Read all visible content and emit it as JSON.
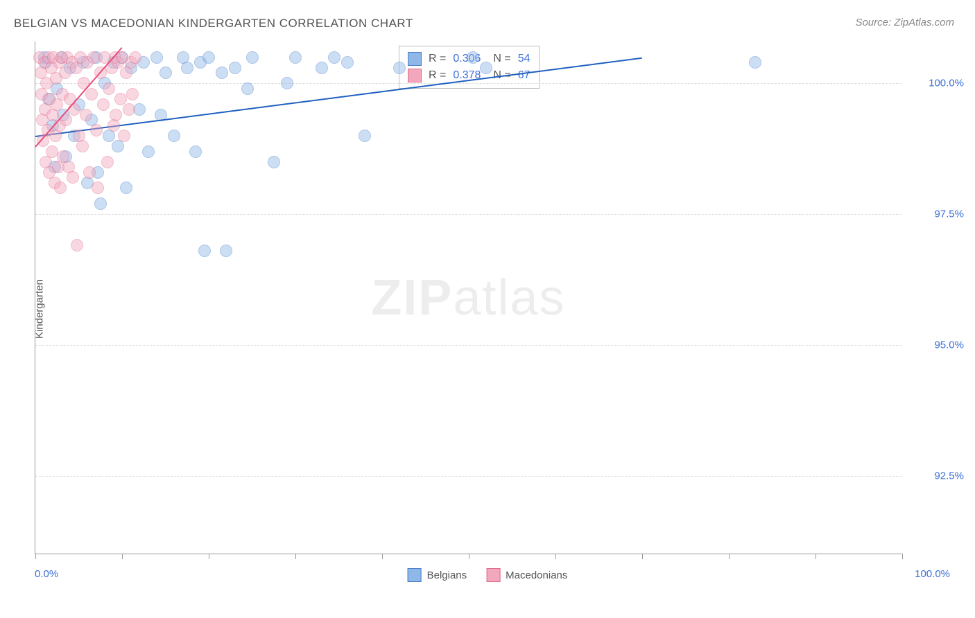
{
  "title": "BELGIAN VS MACEDONIAN KINDERGARTEN CORRELATION CHART",
  "source": "Source: ZipAtlas.com",
  "ylabel": "Kindergarten",
  "watermark_zip": "ZIP",
  "watermark_atlas": "atlas",
  "chart": {
    "type": "scatter",
    "background_color": "#ffffff",
    "grid_color": "#dddddd",
    "axis_color": "#999999",
    "text_color": "#555555",
    "value_color": "#3b6fd6",
    "xlim": [
      0,
      100
    ],
    "ylim": [
      91.0,
      100.8
    ],
    "xaxis_left_label": "0.0%",
    "xaxis_right_label": "100.0%",
    "xtick_positions": [
      0,
      10,
      20,
      30,
      40,
      50,
      60,
      70,
      80,
      90,
      100
    ],
    "yticks": [
      {
        "value": 100.0,
        "label": "100.0%"
      },
      {
        "value": 97.5,
        "label": "97.5%"
      },
      {
        "value": 95.0,
        "label": "95.0%"
      },
      {
        "value": 92.5,
        "label": "92.5%"
      }
    ],
    "marker_radius": 9,
    "marker_opacity": 0.45,
    "series": [
      {
        "name": "Belgians",
        "fill_color": "#8fb7e8",
        "stroke_color": "#4a7fc9",
        "trend_color": "#1f5fc0",
        "R": "0.306",
        "N": "54",
        "trendline": {
          "x1": 0,
          "y1": 99.0,
          "x2": 70,
          "y2": 100.5
        },
        "points": [
          {
            "x": 1.0,
            "y": 100.5
          },
          {
            "x": 1.2,
            "y": 100.4
          },
          {
            "x": 1.5,
            "y": 99.7
          },
          {
            "x": 2.0,
            "y": 99.2
          },
          {
            "x": 2.2,
            "y": 98.4
          },
          {
            "x": 2.5,
            "y": 99.9
          },
          {
            "x": 3.0,
            "y": 100.5
          },
          {
            "x": 3.2,
            "y": 99.4
          },
          {
            "x": 3.5,
            "y": 98.6
          },
          {
            "x": 4.0,
            "y": 100.3
          },
          {
            "x": 4.5,
            "y": 99.0
          },
          {
            "x": 5.0,
            "y": 99.6
          },
          {
            "x": 5.5,
            "y": 100.4
          },
          {
            "x": 6.0,
            "y": 98.1
          },
          {
            "x": 6.5,
            "y": 99.3
          },
          {
            "x": 7.0,
            "y": 100.5
          },
          {
            "x": 7.2,
            "y": 98.3
          },
          {
            "x": 7.5,
            "y": 97.7
          },
          {
            "x": 8.0,
            "y": 100.0
          },
          {
            "x": 8.5,
            "y": 99.0
          },
          {
            "x": 9.0,
            "y": 100.4
          },
          {
            "x": 9.5,
            "y": 98.8
          },
          {
            "x": 10.0,
            "y": 100.5
          },
          {
            "x": 10.5,
            "y": 98.0
          },
          {
            "x": 11.0,
            "y": 100.3
          },
          {
            "x": 12.0,
            "y": 99.5
          },
          {
            "x": 12.5,
            "y": 100.4
          },
          {
            "x": 13.0,
            "y": 98.7
          },
          {
            "x": 14.0,
            "y": 100.5
          },
          {
            "x": 14.5,
            "y": 99.4
          },
          {
            "x": 15.0,
            "y": 100.2
          },
          {
            "x": 16.0,
            "y": 99.0
          },
          {
            "x": 17.0,
            "y": 100.5
          },
          {
            "x": 17.5,
            "y": 100.3
          },
          {
            "x": 18.5,
            "y": 98.7
          },
          {
            "x": 19.0,
            "y": 100.4
          },
          {
            "x": 19.5,
            "y": 96.8
          },
          {
            "x": 20.0,
            "y": 100.5
          },
          {
            "x": 21.5,
            "y": 100.2
          },
          {
            "x": 22.0,
            "y": 96.8
          },
          {
            "x": 23.0,
            "y": 100.3
          },
          {
            "x": 24.5,
            "y": 99.9
          },
          {
            "x": 25.0,
            "y": 100.5
          },
          {
            "x": 27.5,
            "y": 98.5
          },
          {
            "x": 29.0,
            "y": 100.0
          },
          {
            "x": 30.0,
            "y": 100.5
          },
          {
            "x": 33.0,
            "y": 100.3
          },
          {
            "x": 34.5,
            "y": 100.5
          },
          {
            "x": 36.0,
            "y": 100.4
          },
          {
            "x": 38.0,
            "y": 99.0
          },
          {
            "x": 42.0,
            "y": 100.3
          },
          {
            "x": 50.5,
            "y": 100.5
          },
          {
            "x": 52.0,
            "y": 100.3
          },
          {
            "x": 83.0,
            "y": 100.4
          }
        ]
      },
      {
        "name": "Macedonians",
        "fill_color": "#f2a7bd",
        "stroke_color": "#e06a8c",
        "trend_color": "#e84d7a",
        "R": "0.378",
        "N": "67",
        "trendline": {
          "x1": 0,
          "y1": 98.8,
          "x2": 10,
          "y2": 100.7
        },
        "points": [
          {
            "x": 0.5,
            "y": 100.5
          },
          {
            "x": 0.6,
            "y": 100.2
          },
          {
            "x": 0.7,
            "y": 99.8
          },
          {
            "x": 0.8,
            "y": 99.3
          },
          {
            "x": 0.9,
            "y": 98.9
          },
          {
            "x": 1.0,
            "y": 100.4
          },
          {
            "x": 1.1,
            "y": 99.5
          },
          {
            "x": 1.2,
            "y": 98.5
          },
          {
            "x": 1.3,
            "y": 100.0
          },
          {
            "x": 1.4,
            "y": 99.1
          },
          {
            "x": 1.5,
            "y": 100.5
          },
          {
            "x": 1.6,
            "y": 98.3
          },
          {
            "x": 1.7,
            "y": 99.7
          },
          {
            "x": 1.8,
            "y": 100.3
          },
          {
            "x": 1.9,
            "y": 98.7
          },
          {
            "x": 2.0,
            "y": 99.4
          },
          {
            "x": 2.1,
            "y": 100.5
          },
          {
            "x": 2.2,
            "y": 98.1
          },
          {
            "x": 2.3,
            "y": 99.0
          },
          {
            "x": 2.4,
            "y": 100.1
          },
          {
            "x": 2.5,
            "y": 99.6
          },
          {
            "x": 2.6,
            "y": 98.4
          },
          {
            "x": 2.7,
            "y": 100.4
          },
          {
            "x": 2.8,
            "y": 99.2
          },
          {
            "x": 2.9,
            "y": 98.0
          },
          {
            "x": 3.0,
            "y": 100.5
          },
          {
            "x": 3.1,
            "y": 99.8
          },
          {
            "x": 3.2,
            "y": 98.6
          },
          {
            "x": 3.4,
            "y": 100.2
          },
          {
            "x": 3.5,
            "y": 99.3
          },
          {
            "x": 3.7,
            "y": 100.5
          },
          {
            "x": 3.8,
            "y": 98.4
          },
          {
            "x": 4.0,
            "y": 99.7
          },
          {
            "x": 4.2,
            "y": 100.4
          },
          {
            "x": 4.3,
            "y": 98.2
          },
          {
            "x": 4.5,
            "y": 99.5
          },
          {
            "x": 4.7,
            "y": 100.3
          },
          {
            "x": 4.8,
            "y": 96.9
          },
          {
            "x": 5.0,
            "y": 99.0
          },
          {
            "x": 5.2,
            "y": 100.5
          },
          {
            "x": 5.4,
            "y": 98.8
          },
          {
            "x": 5.6,
            "y": 100.0
          },
          {
            "x": 5.8,
            "y": 99.4
          },
          {
            "x": 6.0,
            "y": 100.4
          },
          {
            "x": 6.2,
            "y": 98.3
          },
          {
            "x": 6.5,
            "y": 99.8
          },
          {
            "x": 6.7,
            "y": 100.5
          },
          {
            "x": 7.0,
            "y": 99.1
          },
          {
            "x": 7.2,
            "y": 98.0
          },
          {
            "x": 7.5,
            "y": 100.2
          },
          {
            "x": 7.8,
            "y": 99.6
          },
          {
            "x": 8.0,
            "y": 100.5
          },
          {
            "x": 8.3,
            "y": 98.5
          },
          {
            "x": 8.5,
            "y": 99.9
          },
          {
            "x": 8.8,
            "y": 100.3
          },
          {
            "x": 9.0,
            "y": 99.2
          },
          {
            "x": 9.2,
            "y": 100.5
          },
          {
            "x": 9.3,
            "y": 99.4
          },
          {
            "x": 9.5,
            "y": 100.4
          },
          {
            "x": 9.8,
            "y": 99.7
          },
          {
            "x": 10.0,
            "y": 100.5
          },
          {
            "x": 10.2,
            "y": 99.0
          },
          {
            "x": 10.5,
            "y": 100.2
          },
          {
            "x": 10.8,
            "y": 99.5
          },
          {
            "x": 11.0,
            "y": 100.4
          },
          {
            "x": 11.2,
            "y": 99.8
          },
          {
            "x": 11.5,
            "y": 100.5
          }
        ]
      }
    ]
  },
  "stat_box": {
    "r_label": "R =",
    "n_label": "N ="
  },
  "bottom_legend": {
    "items": [
      {
        "label": "Belgians",
        "swatch_fill": "#8fb7e8",
        "swatch_border": "#4a7fc9"
      },
      {
        "label": "Macedonians",
        "swatch_fill": "#f2a7bd",
        "swatch_border": "#e06a8c"
      }
    ]
  }
}
